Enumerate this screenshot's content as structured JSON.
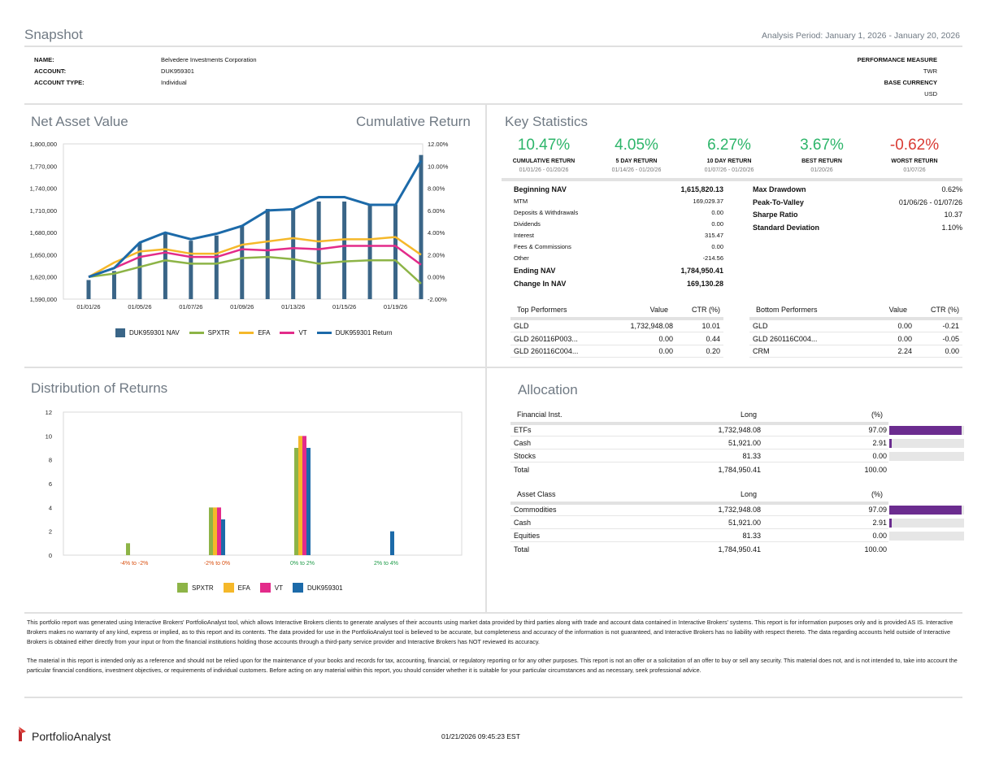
{
  "header": {
    "title": "Snapshot",
    "analysis_period": "Analysis Period: January 1, 2026 - January 20, 2026"
  },
  "account_info": {
    "name_label": "NAME:",
    "name_value": "Belvedere Investments Corporation",
    "account_label": "ACCOUNT:",
    "account_value": "DUK959301",
    "type_label": "ACCOUNT TYPE:",
    "type_value": "Individual",
    "perf_measure_label": "PERFORMANCE MEASURE",
    "perf_measure_value": "TWR",
    "base_currency_label": "BASE CURRENCY",
    "base_currency_value": "USD"
  },
  "nav_section": {
    "title": "Net Asset Value",
    "title_right": "Cumulative Return"
  },
  "colors": {
    "nav": "#3a6587",
    "spxtr": "#8db447",
    "efa": "#f5b82a",
    "vt": "#e32b8a",
    "return": "#1c6aa9",
    "purple_bar": "#6b2c8f",
    "grey_bar": "#e6e6e6"
  },
  "chart_data": [
    {
      "type": "bar+line",
      "title": "Net Asset Value / Cumulative Return",
      "categories": [
        "01/01/26",
        "01/02/26",
        "01/05/26",
        "01/06/26",
        "01/07/26",
        "01/08/26",
        "01/09/26",
        "01/12/26",
        "01/13/26",
        "01/14/26",
        "01/15/26",
        "01/16/26",
        "01/19/26",
        "01/20/26"
      ],
      "x_tick_labels": [
        "01/01/26",
        "01/05/26",
        "01/07/26",
        "01/09/26",
        "01/13/26",
        "01/15/26",
        "01/19/26"
      ],
      "y_left_ticks": [
        "1,590,000",
        "1,620,000",
        "1,650,000",
        "1,680,000",
        "1,710,000",
        "1,740,000",
        "1,770,000",
        "1,800,000"
      ],
      "y_left_range": [
        1590000,
        1800000
      ],
      "y_right_ticks": [
        "-2.00%",
        "0.00%",
        "2.00%",
        "4.00%",
        "6.00%",
        "8.00%",
        "10.00%",
        "12.00%"
      ],
      "y_right_range": [
        -2,
        12
      ],
      "bars": {
        "name": "DUK959301 NAV",
        "values": [
          1615820,
          1628000,
          1666000,
          1679000,
          1669000,
          1676000,
          1690000,
          1712000,
          1713000,
          1722000,
          1722000,
          1718000,
          1718000,
          1784950
        ]
      },
      "series": [
        {
          "name": "SPXTR",
          "key": "spxtr",
          "values": [
            0.0,
            0.3,
            0.9,
            1.5,
            1.2,
            1.2,
            1.7,
            1.8,
            1.6,
            1.2,
            1.4,
            1.5,
            1.5,
            -0.6
          ]
        },
        {
          "name": "EFA",
          "key": "efa",
          "values": [
            0.0,
            1.3,
            2.3,
            2.5,
            2.1,
            2.1,
            2.9,
            3.2,
            3.5,
            3.2,
            3.4,
            3.4,
            3.6,
            2.0
          ]
        },
        {
          "name": "VT",
          "key": "vt",
          "values": [
            0.0,
            0.8,
            1.8,
            2.2,
            1.8,
            1.8,
            2.5,
            2.4,
            2.6,
            2.5,
            2.8,
            2.8,
            2.8,
            1.1
          ]
        },
        {
          "name": "DUK959301 Return",
          "key": "return",
          "values": [
            0.0,
            0.8,
            3.1,
            4.0,
            3.4,
            3.9,
            4.6,
            6.0,
            6.1,
            7.2,
            7.2,
            6.5,
            6.5,
            10.5
          ]
        }
      ]
    },
    {
      "type": "bar",
      "title": "Distribution of Returns",
      "categories": [
        "-4% to -2%",
        "-2% to 0%",
        "0% to 2%",
        "2% to 4%"
      ],
      "y_ticks": [
        "0",
        "2",
        "4",
        "6",
        "8",
        "10",
        "12"
      ],
      "ylim": [
        0,
        12
      ],
      "series": [
        {
          "name": "SPXTR",
          "key": "spxtr",
          "values": [
            1,
            4,
            9,
            0
          ]
        },
        {
          "name": "EFA",
          "key": "efa",
          "values": [
            0,
            4,
            10,
            0
          ]
        },
        {
          "name": "VT",
          "key": "vt",
          "values": [
            0,
            4,
            10,
            0
          ]
        },
        {
          "name": "DUK959301",
          "key": "return",
          "values": [
            0,
            3,
            9,
            2
          ]
        }
      ]
    }
  ],
  "key_stats": {
    "title": "Key Statistics",
    "headline": [
      {
        "value": "10.47%",
        "label": "CUMULATIVE RETURN",
        "range": "01/01/26 - 01/20/26",
        "tone": "green"
      },
      {
        "value": "4.05%",
        "label": "5 DAY RETURN",
        "range": "01/14/26 - 01/20/26",
        "tone": "green"
      },
      {
        "value": "6.27%",
        "label": "10 DAY RETURN",
        "range": "01/07/26 - 01/20/26",
        "tone": "green"
      },
      {
        "value": "3.67%",
        "label": "BEST RETURN",
        "range": "01/20/26",
        "tone": "green"
      },
      {
        "value": "-0.62%",
        "label": "WORST RETURN",
        "range": "01/07/26",
        "tone": "red"
      }
    ],
    "nav_rows": [
      {
        "label": "Beginning NAV",
        "value": "1,615,820.13",
        "strong": true
      },
      {
        "label": "MTM",
        "value": "169,029.37",
        "strong": false
      },
      {
        "label": "Deposits & Withdrawals",
        "value": "0.00",
        "strong": false
      },
      {
        "label": "Dividends",
        "value": "0.00",
        "strong": false
      },
      {
        "label": "Interest",
        "value": "315.47",
        "strong": false
      },
      {
        "label": "Fees & Commissions",
        "value": "0.00",
        "strong": false
      },
      {
        "label": "Other",
        "value": "-214.56",
        "strong": false
      },
      {
        "label": "Ending NAV",
        "value": "1,784,950.41",
        "strong": true
      },
      {
        "label": "Change In NAV",
        "value": "169,130.28",
        "strong": true
      }
    ],
    "risk_rows": [
      {
        "label": "Max Drawdown",
        "value": "0.62%"
      },
      {
        "label": "Peak-To-Valley",
        "value": "01/06/26 - 01/07/26"
      },
      {
        "label": "Sharpe Ratio",
        "value": "10.37"
      },
      {
        "label": "Standard Deviation",
        "value": "1.10%"
      }
    ],
    "top": {
      "header": "Top Performers",
      "value_header": "Value",
      "ctr_header": "CTR (%)",
      "rows": [
        {
          "name": "GLD",
          "value": "1,732,948.08",
          "ctr": "10.01"
        },
        {
          "name": "GLD   260116P003...",
          "value": "0.00",
          "ctr": "0.44"
        },
        {
          "name": "GLD   260116C004...",
          "value": "0.00",
          "ctr": "0.20"
        }
      ]
    },
    "bottom": {
      "header": "Bottom Performers",
      "value_header": "Value",
      "ctr_header": "CTR (%)",
      "rows": [
        {
          "name": "GLD",
          "value": "0.00",
          "ctr": "-0.21"
        },
        {
          "name": "GLD   260116C004...",
          "value": "0.00",
          "ctr": "-0.05"
        },
        {
          "name": "CRM",
          "value": "2.24",
          "ctr": "0.00"
        }
      ]
    }
  },
  "distribution": {
    "title": "Distribution of Returns"
  },
  "allocation": {
    "title": "Allocation",
    "tables": [
      {
        "header": "Financial Inst.",
        "long_header": "Long",
        "pct_header": "(%)",
        "rows": [
          {
            "name": "ETFs",
            "long": "1,732,948.08",
            "pct": "97.09",
            "pct_num": 97.09
          },
          {
            "name": "Cash",
            "long": "51,921.00",
            "pct": "2.91",
            "pct_num": 2.91
          },
          {
            "name": "Stocks",
            "long": "81.33",
            "pct": "0.00",
            "pct_num": 0.0
          }
        ],
        "total": {
          "name": "Total",
          "long": "1,784,950.41",
          "pct": "100.00"
        }
      },
      {
        "header": "Asset Class",
        "long_header": "Long",
        "pct_header": "(%)",
        "rows": [
          {
            "name": "Commodities",
            "long": "1,732,948.08",
            "pct": "97.09",
            "pct_num": 97.09
          },
          {
            "name": "Cash",
            "long": "51,921.00",
            "pct": "2.91",
            "pct_num": 2.91
          },
          {
            "name": "Equities",
            "long": "81.33",
            "pct": "0.00",
            "pct_num": 0.0
          }
        ],
        "total": {
          "name": "Total",
          "long": "1,784,950.41",
          "pct": "100.00"
        }
      }
    ]
  },
  "disclaimer": {
    "p1": "This portfolio report was generated using Interactive Brokers' PortfolioAnalyst tool, which allows Interactive Brokers clients to generate analyses of their accounts using market data provided by third parties along with trade and account data contained in Interactive Brokers' systems. This report is for information purposes only and is provided AS IS. Interactive Brokers makes no warranty of any kind, express or implied, as to this report and its contents. The data provided for use in the PortfolioAnalyst tool is believed to be accurate, but completeness and accuracy of the information is not guaranteed, and Interactive Brokers has no liability with respect thereto. The data regarding accounts held outside of Interactive Brokers is obtained either directly from your input or from the financial institutions holding those accounts through a third-party service provider and Interactive Brokers has NOT reviewed its accuracy.",
    "p2": "The material in this report is intended only as a reference and should not be relied upon for the maintenance of your books and records for tax, accounting, financial, or regulatory reporting or for any other purposes. This report is not an offer or a solicitation of an offer to buy or sell any security. This material does not, and is not intended to, take into account the particular financial conditions, investment objectives, or requirements of individual customers. Before acting on any material within this report, you should consider whether it is suitable for your particular circumstances and as necessary, seek professional advice."
  },
  "footer": {
    "brand": "PortfolioAnalyst",
    "timestamp": "01/21/2026 09:45:23 EST"
  }
}
